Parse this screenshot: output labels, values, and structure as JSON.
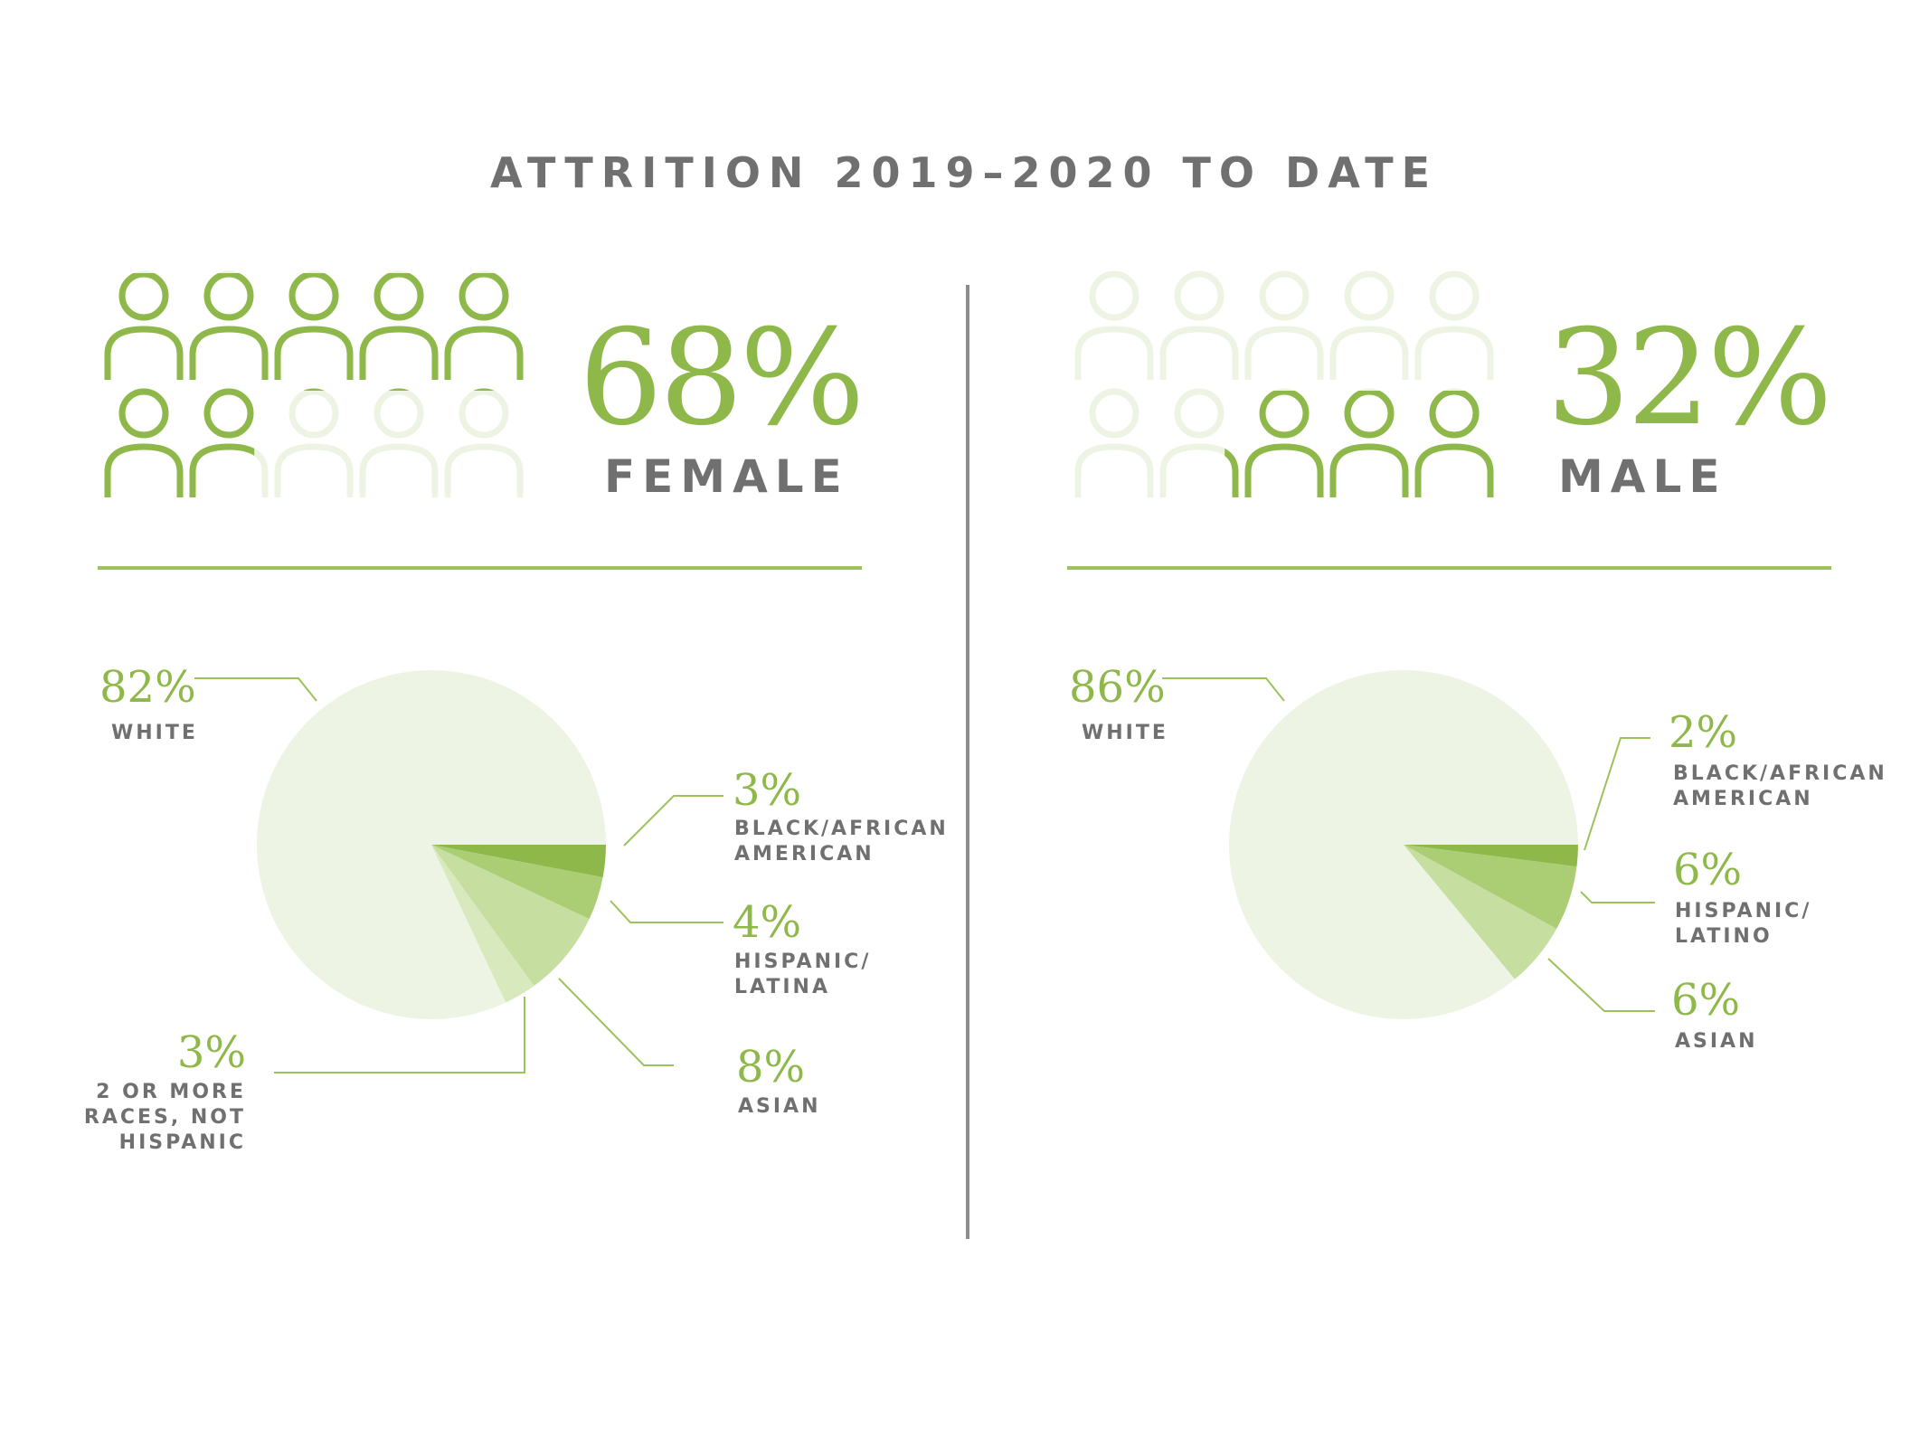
{
  "title": "ATTRITION 2019–2020 TO DATE",
  "colors": {
    "accent": "#8fb84a",
    "pale": "#eef4e4",
    "slice_dark": "#8fb84a",
    "slice_mid": "#abcd74",
    "slice_light": "#c6dea0",
    "slice_lighter": "#d8e9be",
    "text_gray": "#707070",
    "divider": "#8c8c8c"
  },
  "female": {
    "percent": "68%",
    "label": "FEMALE",
    "icons_total": 10,
    "icons_filled_fraction": 0.68
  },
  "male": {
    "percent": "32%",
    "label": "MALE",
    "icons_total": 10,
    "icons_filled_fraction": 0.32
  },
  "chart_data": [
    {
      "type": "pie",
      "group": "female",
      "slices": [
        {
          "name": "WHITE",
          "value": 82,
          "label": "82%",
          "text": [
            "WHITE"
          ],
          "color": "pale"
        },
        {
          "name": "BLACK/AFRICAN AMERICAN",
          "value": 3,
          "label": "3%",
          "text": [
            "BLACK/AFRICAN",
            "AMERICAN"
          ],
          "color": "slice_dark"
        },
        {
          "name": "HISPANIC/LATINA",
          "value": 4,
          "label": "4%",
          "text": [
            "HISPANIC/",
            "LATINA"
          ],
          "color": "slice_mid"
        },
        {
          "name": "ASIAN",
          "value": 8,
          "label": "8%",
          "text": [
            "ASIAN"
          ],
          "color": "slice_light"
        },
        {
          "name": "2 OR MORE RACES, NOT HISPANIC",
          "value": 3,
          "label": "3%",
          "text": [
            "2 OR MORE",
            "RACES, NOT",
            "HISPANIC"
          ],
          "color": "slice_lighter"
        }
      ]
    },
    {
      "type": "pie",
      "group": "male",
      "slices": [
        {
          "name": "WHITE",
          "value": 86,
          "label": "86%",
          "text": [
            "WHITE"
          ],
          "color": "pale"
        },
        {
          "name": "BLACK/AFRICAN AMERICAN",
          "value": 2,
          "label": "2%",
          "text": [
            "BLACK/AFRICAN",
            "AMERICAN"
          ],
          "color": "slice_dark"
        },
        {
          "name": "HISPANIC/LATINO",
          "value": 6,
          "label": "6%",
          "text": [
            "HISPANIC/",
            "LATINO"
          ],
          "color": "slice_mid"
        },
        {
          "name": "ASIAN",
          "value": 6,
          "label": "6%",
          "text": [
            "ASIAN"
          ],
          "color": "slice_light"
        }
      ]
    }
  ]
}
